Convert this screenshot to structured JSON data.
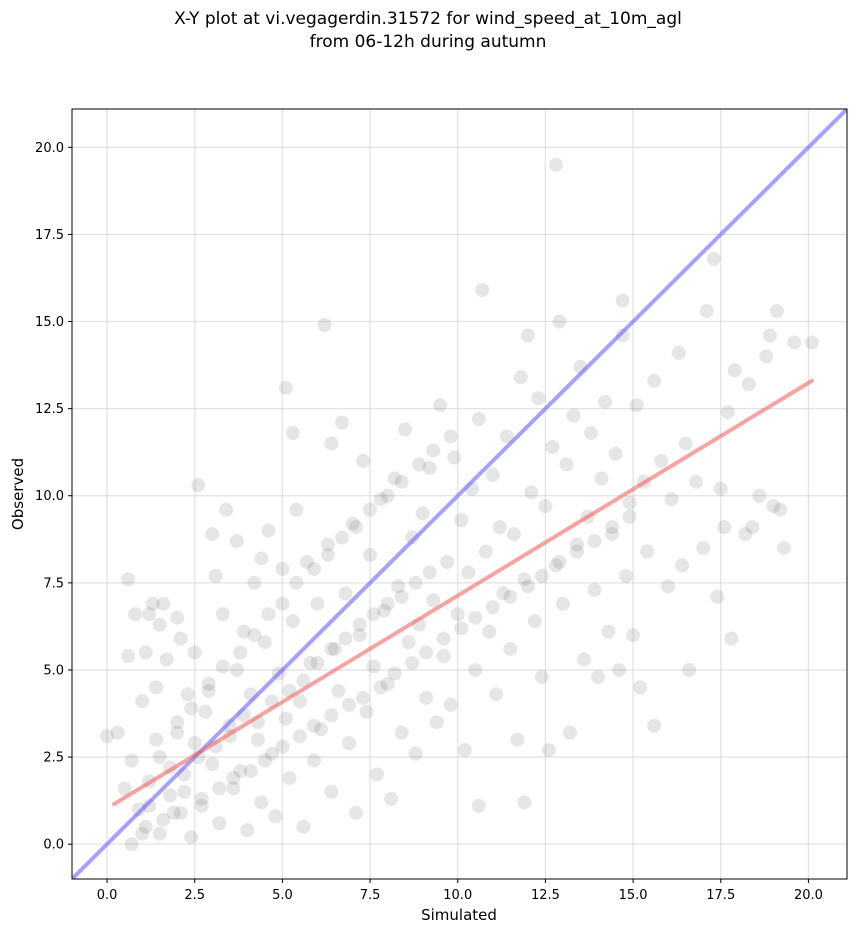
{
  "chart_data": {
    "type": "scatter",
    "title_line1": "X-Y plot at vi.vegagerdin.31572 for wind_speed_at_10m_agl",
    "title_line2": "from 06-12h during autumn",
    "xlabel": "Simulated",
    "ylabel": "Observed",
    "xlim": [
      -1.0,
      21.1
    ],
    "ylim": [
      -1.0,
      21.1
    ],
    "xticks": [
      0.0,
      2.5,
      5.0,
      7.5,
      10.0,
      12.5,
      15.0,
      17.5,
      20.0
    ],
    "xtick_labels": [
      "0.0",
      "2.5",
      "5.0",
      "7.5",
      "10.0",
      "12.5",
      "15.0",
      "17.5",
      "20.0"
    ],
    "yticks": [
      0.0,
      2.5,
      5.0,
      7.5,
      10.0,
      12.5,
      15.0,
      17.5,
      20.0
    ],
    "ytick_labels": [
      "0.0",
      "2.5",
      "5.0",
      "7.5",
      "10.0",
      "12.5",
      "15.0",
      "17.5",
      "20.0"
    ],
    "grid": true,
    "point_color": "#555555",
    "identity_line": {
      "color": "#6666ff",
      "from": [
        -1.0,
        -1.0
      ],
      "to": [
        21.1,
        21.1
      ]
    },
    "fit_line": {
      "color": "#ee6666",
      "from": [
        0.2,
        1.15
      ],
      "to": [
        20.1,
        13.3
      ]
    },
    "points": [
      [
        0.0,
        3.1
      ],
      [
        0.3,
        3.2
      ],
      [
        0.5,
        1.6
      ],
      [
        0.6,
        7.6
      ],
      [
        0.6,
        5.4
      ],
      [
        0.7,
        0.0
      ],
      [
        0.7,
        2.4
      ],
      [
        0.8,
        6.6
      ],
      [
        0.9,
        1.0
      ],
      [
        1.0,
        4.1
      ],
      [
        1.1,
        5.5
      ],
      [
        1.1,
        0.5
      ],
      [
        1.2,
        6.6
      ],
      [
        1.2,
        1.8
      ],
      [
        1.3,
        6.9
      ],
      [
        1.4,
        4.5
      ],
      [
        1.4,
        3.0
      ],
      [
        1.5,
        6.3
      ],
      [
        1.5,
        0.3
      ],
      [
        1.6,
        6.9
      ],
      [
        1.7,
        5.3
      ],
      [
        1.8,
        2.2
      ],
      [
        1.9,
        0.9
      ],
      [
        2.0,
        6.5
      ],
      [
        2.0,
        3.5
      ],
      [
        2.1,
        5.9
      ],
      [
        2.2,
        1.5
      ],
      [
        2.3,
        4.3
      ],
      [
        2.4,
        0.2
      ],
      [
        2.5,
        5.5
      ],
      [
        2.5,
        2.9
      ],
      [
        2.6,
        10.3
      ],
      [
        2.7,
        1.1
      ],
      [
        2.8,
        3.8
      ],
      [
        2.9,
        4.6
      ],
      [
        3.0,
        8.9
      ],
      [
        3.0,
        2.3
      ],
      [
        3.1,
        7.7
      ],
      [
        3.2,
        0.6
      ],
      [
        3.3,
        6.6
      ],
      [
        3.4,
        9.6
      ],
      [
        3.5,
        3.4
      ],
      [
        3.6,
        1.6
      ],
      [
        3.7,
        5.0
      ],
      [
        3.7,
        8.7
      ],
      [
        3.8,
        2.1
      ],
      [
        3.9,
        6.1
      ],
      [
        4.0,
        0.4
      ],
      [
        4.1,
        4.3
      ],
      [
        4.2,
        7.5
      ],
      [
        4.3,
        3.0
      ],
      [
        4.4,
        8.2
      ],
      [
        4.4,
        1.2
      ],
      [
        4.5,
        5.8
      ],
      [
        4.6,
        9.0
      ],
      [
        4.7,
        2.6
      ],
      [
        4.8,
        0.8
      ],
      [
        4.9,
        4.9
      ],
      [
        5.0,
        7.9
      ],
      [
        5.1,
        3.6
      ],
      [
        5.1,
        13.1
      ],
      [
        5.2,
        1.9
      ],
      [
        5.3,
        11.8
      ],
      [
        5.3,
        6.4
      ],
      [
        5.4,
        9.6
      ],
      [
        5.5,
        4.1
      ],
      [
        5.6,
        0.5
      ],
      [
        5.7,
        8.1
      ],
      [
        5.8,
        5.2
      ],
      [
        5.9,
        2.4
      ],
      [
        6.0,
        6.9
      ],
      [
        6.1,
        3.3
      ],
      [
        6.2,
        14.9
      ],
      [
        6.3,
        8.6
      ],
      [
        6.4,
        1.5
      ],
      [
        6.4,
        11.5
      ],
      [
        6.5,
        5.6
      ],
      [
        6.6,
        4.4
      ],
      [
        6.7,
        12.1
      ],
      [
        6.8,
        7.2
      ],
      [
        6.9,
        2.9
      ],
      [
        7.0,
        9.2
      ],
      [
        7.1,
        0.9
      ],
      [
        7.2,
        6.0
      ],
      [
        7.3,
        11.0
      ],
      [
        7.4,
        3.8
      ],
      [
        7.5,
        8.3
      ],
      [
        7.6,
        5.1
      ],
      [
        7.7,
        2.0
      ],
      [
        7.8,
        9.9
      ],
      [
        7.9,
        6.7
      ],
      [
        8.0,
        4.6
      ],
      [
        8.1,
        1.3
      ],
      [
        8.2,
        10.5
      ],
      [
        8.3,
        7.4
      ],
      [
        8.4,
        3.2
      ],
      [
        8.5,
        11.9
      ],
      [
        8.6,
        5.8
      ],
      [
        8.7,
        8.8
      ],
      [
        8.8,
        2.6
      ],
      [
        8.9,
        6.3
      ],
      [
        9.0,
        9.5
      ],
      [
        9.1,
        4.2
      ],
      [
        9.2,
        10.8
      ],
      [
        9.3,
        7.0
      ],
      [
        9.4,
        3.5
      ],
      [
        9.5,
        12.6
      ],
      [
        9.6,
        5.4
      ],
      [
        9.7,
        8.1
      ],
      [
        9.8,
        4.0
      ],
      [
        9.9,
        11.1
      ],
      [
        10.0,
        6.6
      ],
      [
        10.1,
        9.3
      ],
      [
        10.2,
        2.7
      ],
      [
        10.3,
        7.8
      ],
      [
        10.4,
        10.2
      ],
      [
        10.5,
        5.0
      ],
      [
        10.6,
        12.2
      ],
      [
        10.6,
        1.1
      ],
      [
        10.7,
        15.9
      ],
      [
        10.8,
        8.4
      ],
      [
        10.9,
        6.1
      ],
      [
        11.0,
        10.6
      ],
      [
        11.1,
        4.3
      ],
      [
        11.2,
        9.1
      ],
      [
        11.3,
        7.2
      ],
      [
        11.4,
        11.7
      ],
      [
        11.5,
        5.6
      ],
      [
        11.6,
        8.9
      ],
      [
        11.7,
        3.0
      ],
      [
        11.8,
        13.4
      ],
      [
        11.9,
        7.6
      ],
      [
        11.9,
        1.2
      ],
      [
        12.0,
        14.6
      ],
      [
        12.1,
        10.1
      ],
      [
        12.2,
        6.4
      ],
      [
        12.3,
        12.8
      ],
      [
        12.4,
        4.8
      ],
      [
        12.5,
        9.7
      ],
      [
        12.6,
        2.7
      ],
      [
        12.7,
        11.4
      ],
      [
        12.8,
        8.0
      ],
      [
        12.8,
        19.5
      ],
      [
        12.9,
        15.0
      ],
      [
        13.0,
        6.9
      ],
      [
        13.1,
        10.9
      ],
      [
        13.2,
        3.2
      ],
      [
        13.3,
        12.3
      ],
      [
        13.4,
        8.6
      ],
      [
        13.5,
        13.7
      ],
      [
        13.6,
        5.3
      ],
      [
        13.7,
        9.4
      ],
      [
        13.8,
        11.8
      ],
      [
        13.9,
        7.3
      ],
      [
        14.0,
        4.8
      ],
      [
        14.1,
        10.5
      ],
      [
        14.2,
        12.7
      ],
      [
        14.3,
        6.1
      ],
      [
        14.4,
        8.9
      ],
      [
        14.5,
        11.2
      ],
      [
        14.6,
        5.0
      ],
      [
        14.7,
        15.6
      ],
      [
        14.7,
        14.6
      ],
      [
        14.8,
        7.7
      ],
      [
        14.9,
        9.8
      ],
      [
        15.0,
        6.0
      ],
      [
        15.1,
        12.6
      ],
      [
        15.2,
        4.5
      ],
      [
        15.3,
        10.4
      ],
      [
        15.4,
        8.4
      ],
      [
        15.6,
        13.3
      ],
      [
        15.6,
        3.4
      ],
      [
        15.8,
        11.0
      ],
      [
        16.0,
        7.4
      ],
      [
        16.1,
        9.9
      ],
      [
        16.3,
        14.1
      ],
      [
        16.4,
        8.0
      ],
      [
        16.5,
        11.5
      ],
      [
        16.6,
        5.0
      ],
      [
        16.8,
        10.4
      ],
      [
        17.0,
        8.5
      ],
      [
        17.1,
        15.3
      ],
      [
        17.3,
        16.8
      ],
      [
        17.4,
        7.1
      ],
      [
        17.5,
        10.2
      ],
      [
        17.6,
        9.1
      ],
      [
        17.7,
        12.4
      ],
      [
        17.8,
        5.9
      ],
      [
        17.9,
        13.6
      ],
      [
        18.2,
        8.9
      ],
      [
        18.3,
        13.2
      ],
      [
        18.4,
        9.1
      ],
      [
        18.6,
        10.0
      ],
      [
        18.8,
        14.0
      ],
      [
        18.9,
        14.6
      ],
      [
        19.0,
        9.7
      ],
      [
        19.1,
        15.3
      ],
      [
        19.2,
        9.6
      ],
      [
        19.3,
        8.5
      ],
      [
        19.6,
        14.4
      ],
      [
        20.1,
        14.4
      ],
      [
        1.2,
        1.1
      ],
      [
        1.8,
        1.4
      ],
      [
        2.2,
        2.0
      ],
      [
        2.6,
        2.5
      ],
      [
        3.1,
        2.8
      ],
      [
        3.5,
        3.1
      ],
      [
        3.9,
        3.7
      ],
      [
        4.3,
        3.5
      ],
      [
        4.7,
        4.1
      ],
      [
        5.2,
        4.4
      ],
      [
        5.6,
        4.7
      ],
      [
        6.0,
        5.2
      ],
      [
        6.4,
        5.6
      ],
      [
        6.8,
        5.9
      ],
      [
        7.2,
        6.3
      ],
      [
        7.6,
        6.6
      ],
      [
        8.0,
        6.9
      ],
      [
        8.4,
        7.1
      ],
      [
        8.8,
        7.5
      ],
      [
        9.2,
        7.8
      ],
      [
        1.5,
        2.5
      ],
      [
        2.0,
        3.2
      ],
      [
        2.4,
        3.9
      ],
      [
        2.9,
        4.4
      ],
      [
        3.3,
        5.1
      ],
      [
        3.8,
        5.5
      ],
      [
        4.2,
        6.0
      ],
      [
        4.6,
        6.6
      ],
      [
        5.0,
        6.9
      ],
      [
        5.4,
        7.5
      ],
      [
        5.9,
        7.9
      ],
      [
        6.3,
        8.3
      ],
      [
        6.7,
        8.8
      ],
      [
        7.1,
        9.1
      ],
      [
        7.5,
        9.6
      ],
      [
        8.0,
        10.0
      ],
      [
        8.4,
        10.4
      ],
      [
        8.9,
        10.9
      ],
      [
        9.3,
        11.3
      ],
      [
        9.8,
        11.7
      ],
      [
        1.0,
        0.3
      ],
      [
        1.6,
        0.7
      ],
      [
        2.1,
        0.9
      ],
      [
        2.7,
        1.3
      ],
      [
        3.2,
        1.6
      ],
      [
        3.6,
        1.9
      ],
      [
        4.1,
        2.1
      ],
      [
        4.5,
        2.4
      ],
      [
        5.0,
        2.8
      ],
      [
        5.5,
        3.1
      ],
      [
        5.9,
        3.4
      ],
      [
        6.4,
        3.7
      ],
      [
        6.9,
        4.0
      ],
      [
        7.3,
        4.2
      ],
      [
        7.8,
        4.5
      ],
      [
        8.2,
        4.9
      ],
      [
        8.7,
        5.2
      ],
      [
        9.1,
        5.5
      ],
      [
        9.6,
        5.9
      ],
      [
        10.1,
        6.2
      ],
      [
        10.5,
        6.5
      ],
      [
        11.0,
        6.8
      ],
      [
        11.5,
        7.1
      ],
      [
        12.0,
        7.4
      ],
      [
        12.4,
        7.7
      ],
      [
        12.9,
        8.1
      ],
      [
        13.4,
        8.4
      ],
      [
        13.9,
        8.7
      ],
      [
        14.4,
        9.1
      ],
      [
        14.9,
        9.4
      ]
    ]
  }
}
